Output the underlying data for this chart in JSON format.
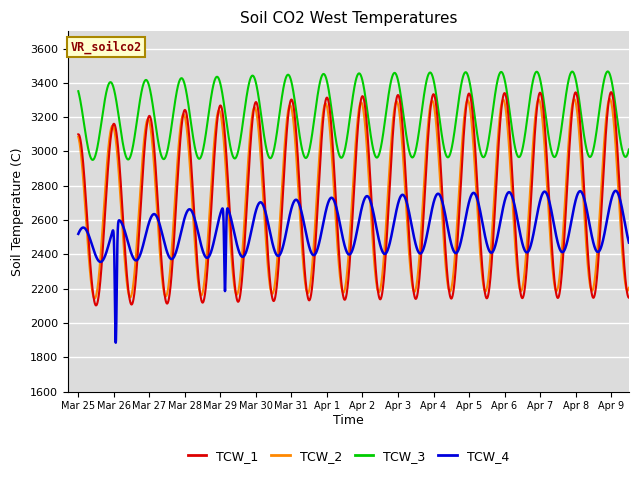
{
  "title": "Soil CO2 West Temperatures",
  "xlabel": "Time",
  "ylabel": "Soil Temperature (C)",
  "ylim": [
    1600,
    3700
  ],
  "xlim_days": [
    -0.3,
    15.5
  ],
  "annotation": "VR_soilco2",
  "legend": [
    "TCW_1",
    "TCW_2",
    "TCW_3",
    "TCW_4"
  ],
  "colors": [
    "#dd0000",
    "#ff8800",
    "#00cc00",
    "#0000dd"
  ],
  "background_color": "#dcdcdc",
  "xtick_labels": [
    "Mar 25",
    "Mar 26",
    "Mar 27",
    "Mar 28",
    "Mar 29",
    "Mar 30",
    "Mar 31",
    "Apr 1",
    "Apr 2",
    "Apr 3",
    "Apr 4",
    "Apr 5",
    "Apr 6",
    "Apr 7",
    "Apr 8",
    "Apr 9"
  ],
  "xtick_positions": [
    0,
    1,
    2,
    3,
    4,
    5,
    6,
    7,
    8,
    9,
    10,
    11,
    12,
    13,
    14,
    15
  ],
  "ytick_labels": [
    "1600",
    "1800",
    "2000",
    "2200",
    "2400",
    "2600",
    "2800",
    "3000",
    "3200",
    "3400",
    "3600"
  ],
  "ytick_positions": [
    1600,
    1800,
    2000,
    2200,
    2400,
    2600,
    2800,
    3000,
    3200,
    3400,
    3600
  ]
}
